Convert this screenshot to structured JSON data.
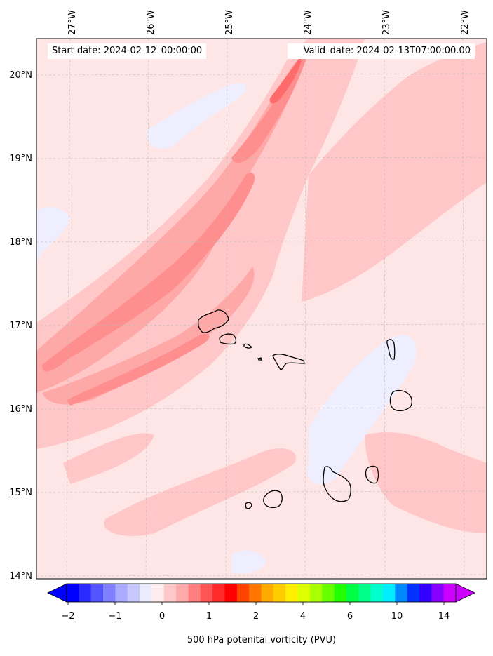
{
  "header": {
    "start_date": "Start date: 2024-02-12_00:00:00",
    "valid_date": "Valid_date: 2024-02-13T07:00:00.00"
  },
  "map": {
    "lon_labels": [
      "27°W",
      "26°W",
      "25°W",
      "24°W",
      "23°W",
      "22°W"
    ],
    "lat_labels": [
      "20°N",
      "19°N",
      "18°N",
      "17°N",
      "16°N",
      "15°N",
      "14°N"
    ],
    "field_colors": {
      "background": "#ffe6e6",
      "light_pink": "#ffc7c7",
      "mid_pink": "#ffa8a8",
      "strong_pink": "#ff8e8e",
      "red": "#ff6a6a",
      "faint_blue": "#eeeeff"
    }
  },
  "colorbar": {
    "label": "500 hPa potenital vorticity (PVU)",
    "tick_labels": [
      "−2",
      "−1",
      "0",
      "1",
      "2",
      "4",
      "6",
      "10",
      "14"
    ],
    "colors": [
      "#0000ff",
      "#2a2aff",
      "#5555ff",
      "#7f7fff",
      "#aaaaff",
      "#c8c8ff",
      "#ececff",
      "#ffecec",
      "#ffc8c8",
      "#ffaaaa",
      "#ff7f7f",
      "#ff5555",
      "#ff2a2a",
      "#ff0000",
      "#ff4400",
      "#ff7700",
      "#ffaa00",
      "#ffcc00",
      "#ffee00",
      "#ddff00",
      "#aaff00",
      "#66ff00",
      "#22ff00",
      "#00ff44",
      "#00ff88",
      "#00ffcc",
      "#00eeff",
      "#0088ff",
      "#0033ff",
      "#3300ff",
      "#8800ff",
      "#cc00ff"
    ]
  }
}
